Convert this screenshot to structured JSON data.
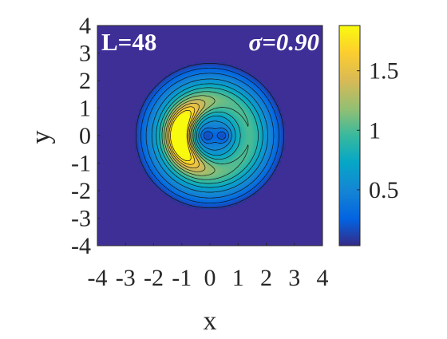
{
  "chart_data": {
    "type": "heatmap",
    "title": "",
    "xlabel": "x",
    "ylabel": "y",
    "xlim": [
      -4,
      4
    ],
    "ylim": [
      -4,
      4
    ],
    "x_ticks": [
      "-4",
      "-3",
      "-2",
      "-1",
      "0",
      "1",
      "2",
      "3",
      "4"
    ],
    "y_ticks": [
      "4",
      "3",
      "2",
      "1",
      "0",
      "-1",
      "-2",
      "-3",
      "-4"
    ],
    "annotations": {
      "left": "L=48",
      "right": "σ=0.90"
    },
    "colorbar": {
      "colormap": "parula",
      "range": [
        0.03,
        1.88
      ],
      "ticks": [
        "0.5",
        "1",
        "1.5"
      ],
      "tick_values": [
        0.5,
        1.0,
        1.5
      ]
    },
    "contour_levels": [
      0.1,
      0.25,
      0.4,
      0.55,
      0.7,
      0.85,
      1.0,
      1.15,
      1.3,
      1.45,
      1.6,
      1.75
    ],
    "field_description": "Crescent-shaped density peak of about 1.85 on the left side (x from about -1.5 to 1), an outer ring near radius 2.5, and a low-density core near the origin with two small minima near (-0.1, 0) and (0.45, 0)"
  }
}
